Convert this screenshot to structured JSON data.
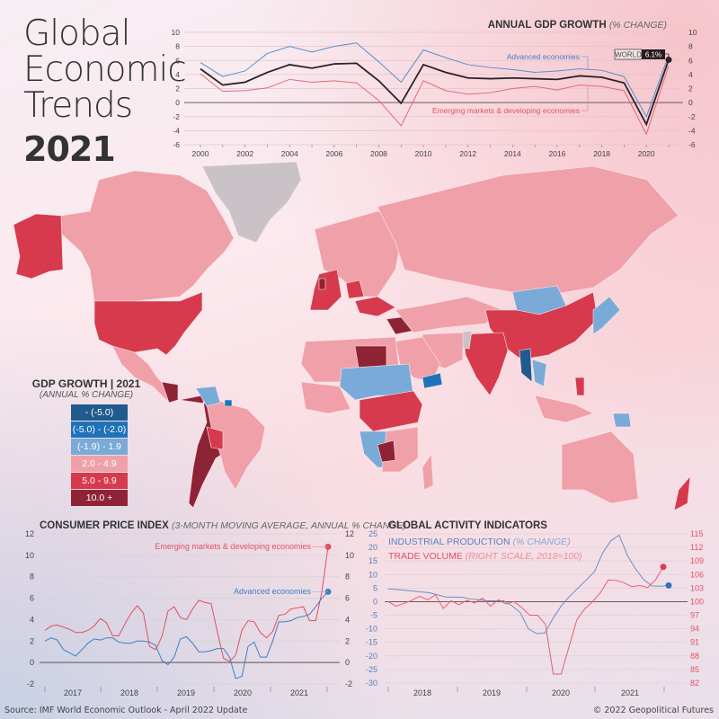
{
  "header": {
    "title_line1": "Global",
    "title_line2": "Economic",
    "title_line3": "Trends",
    "year": "2021"
  },
  "map": {
    "legend_title": "GDP GROWTH | 2021",
    "legend_subtitle": "(ANNUAL % CHANGE)",
    "legend_items": [
      {
        "label": "- (-5.0)",
        "color": "#1f5b8e"
      },
      {
        "label": "(-5.0) - (-2.0)",
        "color": "#1f72b8"
      },
      {
        "label": "(-1.9) - 1.9",
        "color": "#7aaad8"
      },
      {
        "label": "2.0 - 4.9",
        "color": "#f0a0a8"
      },
      {
        "label": "5.0 - 9.9",
        "color": "#d63a4c"
      },
      {
        "label": "10.0 +",
        "color": "#8e2336"
      }
    ],
    "no_data_color": "#c9c3c7"
  },
  "gdp_chart": {
    "title": "ANNUAL GDP GROWTH",
    "title_note": "(% CHANGE)",
    "world_label": "WORLD",
    "world_value": "6.1%",
    "advanced_label": "Advanced economies",
    "emerging_label": "Emerging markets & developing economies"
  },
  "cpi_chart": {
    "title": "CONSUMER PRICE INDEX",
    "title_note": "(3-MONTH MOVING AVERAGE, ANNUAL % CHANGE)",
    "emerging_label": "Emerging markets & developing economies",
    "advanced_label": "Advanced economies"
  },
  "activity_chart": {
    "title": "GLOBAL ACTIVITY INDICATORS",
    "ip_label": "INDUSTRIAL PRODUCTION",
    "ip_note": "(% CHANGE)",
    "tv_label": "TRADE VOLUME",
    "tv_note": "(RIGHT SCALE, 2018=100)"
  },
  "footer": {
    "source": "Source: IMF World Economic Outlook - April 2022 Update",
    "copyright": "© 2022 Geopolitical Futures"
  },
  "chart_data": [
    {
      "type": "line",
      "title": "ANNUAL GDP GROWTH (% CHANGE)",
      "x": [
        2000,
        2001,
        2002,
        2003,
        2004,
        2005,
        2006,
        2007,
        2008,
        2009,
        2010,
        2011,
        2012,
        2013,
        2014,
        2015,
        2016,
        2017,
        2018,
        2019,
        2020,
        2021
      ],
      "series": [
        {
          "name": "Upper series (blue)",
          "color": "#5b8fc9",
          "values": [
            5.7,
            3.7,
            4.5,
            7.0,
            8.0,
            7.2,
            8.0,
            8.5,
            5.8,
            2.9,
            7.5,
            6.4,
            5.4,
            5.0,
            4.7,
            4.3,
            4.5,
            4.8,
            4.6,
            3.7,
            -2.0,
            6.8
          ]
        },
        {
          "name": "World",
          "color": "#2a2226",
          "values": [
            4.8,
            2.5,
            2.9,
            4.3,
            5.4,
            4.9,
            5.5,
            5.6,
            3.1,
            -0.1,
            5.4,
            4.3,
            3.5,
            3.4,
            3.5,
            3.4,
            3.3,
            3.8,
            3.6,
            2.8,
            -3.1,
            6.1
          ]
        },
        {
          "name": "Lower series (red)",
          "color": "#e36a75",
          "values": [
            4.1,
            1.6,
            1.7,
            2.1,
            3.3,
            2.9,
            3.1,
            2.8,
            0.3,
            -3.3,
            3.1,
            1.7,
            1.2,
            1.4,
            2.0,
            2.3,
            1.8,
            2.5,
            2.3,
            1.7,
            -4.5,
            5.2
          ]
        }
      ],
      "annotations": [
        "Advanced economies",
        "Emerging markets & developing economies",
        "WORLD 6.1%"
      ],
      "ylim": [
        -6,
        10
      ],
      "yticks": [
        -6,
        -4,
        -2,
        0,
        2,
        4,
        6,
        8,
        10
      ],
      "xticks": [
        2000,
        2002,
        2004,
        2006,
        2008,
        2010,
        2012,
        2014,
        2016,
        2018,
        2020
      ],
      "grid": true
    },
    {
      "type": "line",
      "title": "CONSUMER PRICE INDEX (3-MONTH MOVING AVERAGE, ANNUAL % CHANGE)",
      "x_label_ticks": [
        "2017",
        "2018",
        "2019",
        "2020",
        "2021"
      ],
      "series": [
        {
          "name": "Emerging markets & developing economies",
          "color": "#e0505e",
          "values": [
            3.0,
            3.4,
            3.5,
            3.3,
            3.1,
            2.8,
            2.8,
            3.0,
            3.4,
            4.1,
            3.7,
            2.5,
            2.5,
            3.6,
            4.6,
            5.3,
            4.6,
            1.5,
            1.2,
            2.4,
            4.8,
            5.2,
            4.2,
            4.0,
            5.0,
            5.8,
            5.6,
            5.5,
            2.9,
            0.4,
            0.1,
            0.7,
            3.0,
            3.9,
            3.8,
            2.8,
            2.3,
            2.9,
            4.4,
            4.5,
            5.0,
            5.1,
            5.2,
            3.9,
            3.9,
            6.6,
            10.8
          ]
        },
        {
          "name": "Advanced economies",
          "color": "#3f7ec4",
          "values": [
            2.0,
            2.3,
            2.1,
            1.2,
            0.9,
            0.6,
            1.2,
            1.8,
            2.2,
            2.1,
            2.3,
            2.3,
            1.9,
            1.8,
            1.8,
            2.0,
            2.0,
            1.9,
            1.6,
            0.2,
            -0.2,
            0.5,
            2.2,
            2.4,
            1.8,
            1.0,
            1.0,
            1.1,
            1.3,
            1.3,
            0.5,
            -1.5,
            -1.3,
            1.5,
            1.9,
            0.5,
            0.5,
            2.0,
            3.8,
            3.8,
            3.9,
            4.2,
            4.3,
            4.5,
            5.2,
            6.0,
            6.6
          ]
        }
      ],
      "ylim": [
        -2,
        12
      ],
      "yticks": [
        -2,
        0,
        2,
        4,
        6,
        8,
        10,
        12
      ],
      "grid": true
    },
    {
      "type": "line",
      "title": "GLOBAL ACTIVITY INDICATORS",
      "x_label_ticks": [
        "2018",
        "2019",
        "2020",
        "2021"
      ],
      "series": [
        {
          "name": "INDUSTRIAL PRODUCTION (% CHANGE)",
          "axis": "left",
          "color": "#6b8fc9",
          "values": [
            4.7,
            4.5,
            4.2,
            3.9,
            3.6,
            3.3,
            2.5,
            1.7,
            1.7,
            1.6,
            1.0,
            0.7,
            0.3,
            0.3,
            0.3,
            -1.5,
            -4.0,
            -10.0,
            -11.8,
            -11.5,
            -6.0,
            -1.5,
            2.0,
            5.0,
            8.0,
            11.0,
            18.0,
            22.5,
            24.5,
            17.0,
            12.0,
            8.0,
            5.8,
            5.7,
            6.0
          ]
        },
        {
          "name": "TRADE VOLUME (RIGHT SCALE, 2018=100)",
          "axis": "right",
          "color": "#e66070",
          "values": [
            100.0,
            99.0,
            99.6,
            100.3,
            101.2,
            100.4,
            101.5,
            98.5,
            100.2,
            99.3,
            100.3,
            99.7,
            100.8,
            99.0,
            100.4,
            99.5,
            100.0,
            98.7,
            97.0,
            97.0,
            95.0,
            84.0,
            84.0,
            90.0,
            96.0,
            98.4,
            100.0,
            102.0,
            104.8,
            104.7,
            104.2,
            103.3,
            103.6,
            103.1,
            104.8,
            107.7
          ]
        }
      ],
      "ylim_left": [
        -30,
        25
      ],
      "yticks_left": [
        -30,
        -25,
        -20,
        -15,
        -10,
        -5,
        0,
        5,
        10,
        15,
        20,
        25
      ],
      "ylim_right": [
        82,
        115
      ],
      "yticks_right": [
        82,
        85,
        88,
        91,
        94,
        97,
        100,
        103,
        106,
        109,
        112,
        115
      ],
      "grid": true
    }
  ]
}
